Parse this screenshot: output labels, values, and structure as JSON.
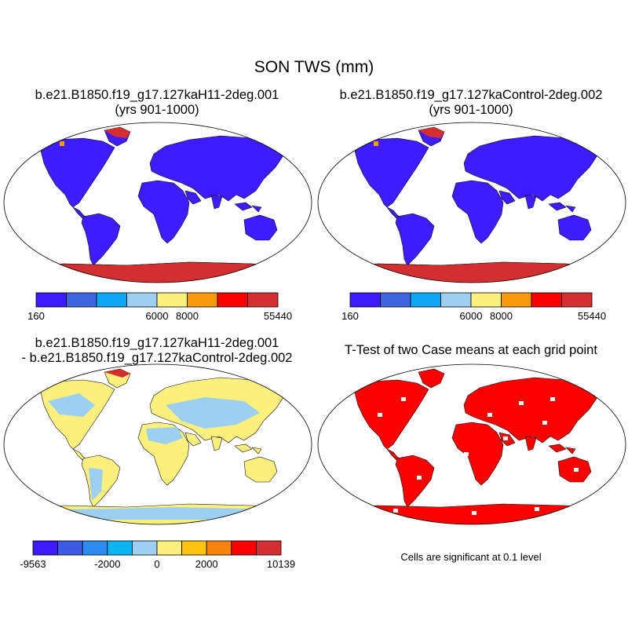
{
  "title": "SON TWS (mm)",
  "panels": [
    {
      "title_line1": "b.e21.B1850.f19_g17.127kaH11-2deg.001",
      "title_line2": "(yrs 901-1000)",
      "colorbar": {
        "colors": [
          "#3f1cff",
          "#3e64e0",
          "#0da7f5",
          "#9ccff0",
          "#fbef7d",
          "#f99a0e",
          "#fb0000",
          "#d42f30"
        ],
        "tick_labels": [
          "160",
          "6000",
          "8000",
          "55440"
        ],
        "tick_boundaries": [
          0,
          4,
          5,
          8
        ]
      },
      "land_color": "#3f1cff",
      "antarctica_color": "#d42f30"
    },
    {
      "title_line1": "b.e21.B1850.f19_g17.127kaControl-2deg.002",
      "title_line2": "(yrs 901-1000)",
      "colorbar": {
        "colors": [
          "#3f1cff",
          "#3e64e0",
          "#0da7f5",
          "#9ccff0",
          "#fbef7d",
          "#f99a0e",
          "#fb0000",
          "#d42f30"
        ],
        "tick_labels": [
          "160",
          "6000",
          "8000",
          "55440"
        ],
        "tick_boundaries": [
          0,
          4,
          5,
          8
        ]
      },
      "land_color": "#3f1cff",
      "antarctica_color": "#d42f30"
    },
    {
      "title_line1": "b.e21.B1850.f19_g17.127kaH11-2deg.001",
      "title_line2": "- b.e21.B1850.f19_g17.127kaControl-2deg.002",
      "colorbar": {
        "colors": [
          "#3f1cff",
          "#3e5ae3",
          "#2c8cf0",
          "#0db4f2",
          "#9ccff0",
          "#fbef7d",
          "#fbc30e",
          "#f9830e",
          "#fb0000",
          "#d42f30"
        ],
        "tick_labels": [
          "-9563",
          "-2000",
          "0",
          "2000",
          "10139"
        ],
        "tick_boundaries": [
          0,
          3,
          5,
          7,
          10
        ]
      },
      "land_color": "#fbef7d",
      "secondary_color": "#9ccff0"
    },
    {
      "title_line1": "T-Test of two Case means at each grid point",
      "note": "Cells are significant at 0.1 level",
      "land_color": "#fb0000"
    }
  ]
}
